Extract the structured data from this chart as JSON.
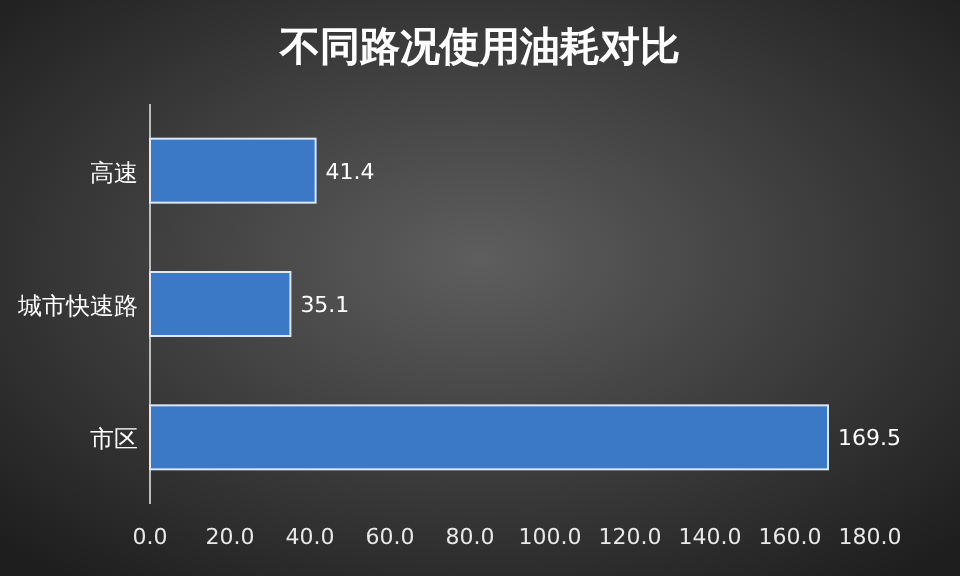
{
  "chart_data": {
    "type": "bar",
    "orientation": "horizontal",
    "title": "不同路况使用油耗对比",
    "categories": [
      "高速",
      "城市快速路",
      "市区"
    ],
    "values": [
      41.4,
      35.1,
      169.5
    ],
    "color": "#3b78c6",
    "xlim": [
      0,
      180
    ],
    "xticks": [
      {
        "value": 0,
        "label": "0.0"
      },
      {
        "value": 20,
        "label": "20.0"
      },
      {
        "value": 40,
        "label": "40.0"
      },
      {
        "value": 60,
        "label": "60.0"
      },
      {
        "value": 80,
        "label": "80.0"
      },
      {
        "value": 100,
        "label": "100.0"
      },
      {
        "value": 120,
        "label": "120.0"
      },
      {
        "value": 140,
        "label": "140.0"
      },
      {
        "value": 160,
        "label": "160.0"
      },
      {
        "value": 180,
        "label": "180.0"
      }
    ],
    "data_labels": true,
    "grid": false
  }
}
